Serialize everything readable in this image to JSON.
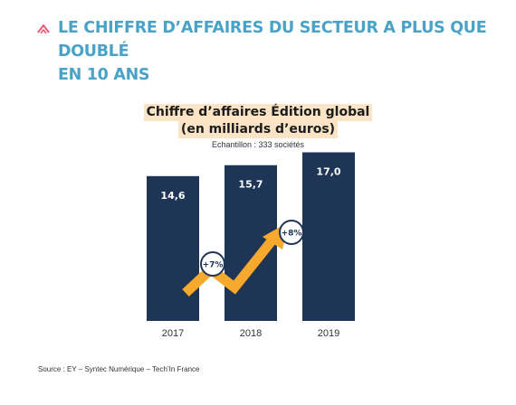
{
  "heading": {
    "line1": "LE CHIFFRE D’AFFAIRES DU SECTEUR A PLUS QUE DOUBLÉ",
    "line2": "EN 10 ANS",
    "icon": "chevron-up-icon",
    "color": "#4aa3c6"
  },
  "sample_note": "Echantillon : 333 sociétés",
  "source": "Source : EY – Syntec Numérique – Tech’In France",
  "colors": {
    "bar": "#1f3556",
    "arrow": "#f6a92c",
    "badge": "#1f3556"
  },
  "chart_data": {
    "type": "bar",
    "title": "Chiffre d’affaires Édition global",
    "subtitle": "(en milliards d’euros)",
    "categories": [
      "2017",
      "2018",
      "2019"
    ],
    "values": [
      14.6,
      15.7,
      17.0
    ],
    "value_labels": [
      "14,6",
      "15,7",
      "17,0"
    ],
    "growth_labels": [
      "+7%",
      "+8%"
    ],
    "ylim": [
      0,
      17.5
    ],
    "grid": false,
    "legend": "none"
  }
}
